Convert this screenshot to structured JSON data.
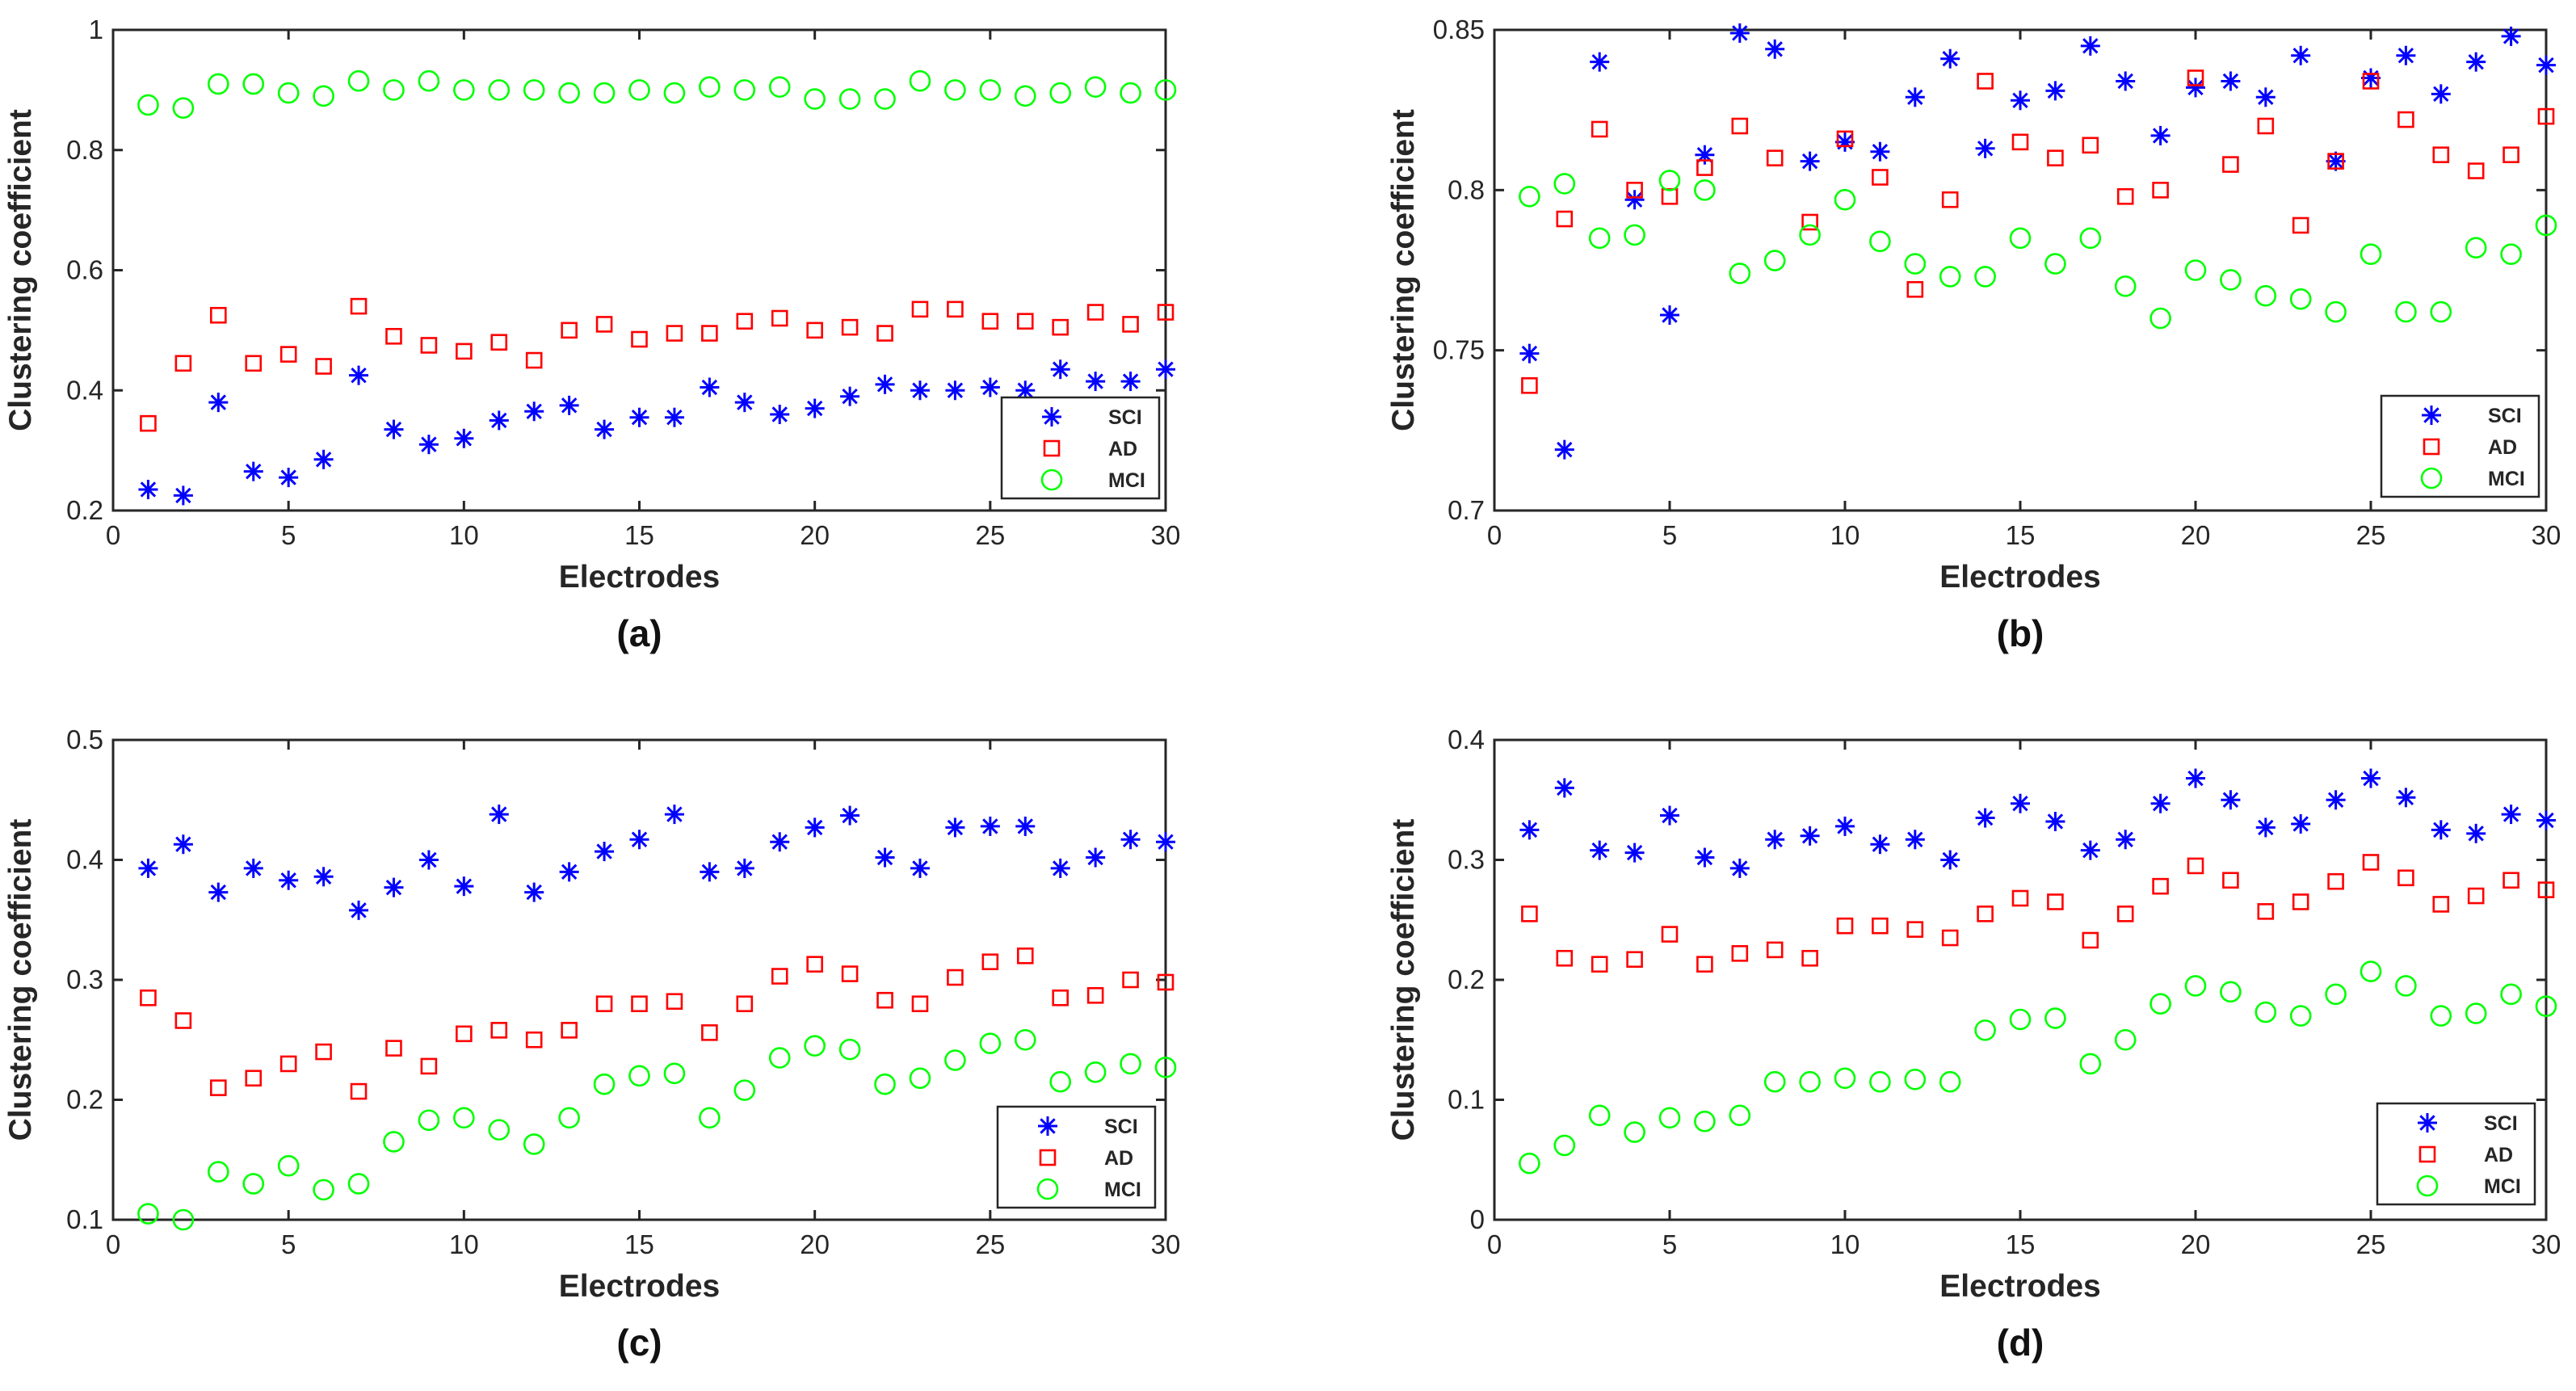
{
  "colors": {
    "SCI": "#0000ff",
    "AD": "#ff0000",
    "MCI": "#00ff00"
  },
  "chart_data": [
    {
      "type": "scatter",
      "panel_label": "(a)",
      "xlabel": "Electrodes",
      "ylabel": "Clustering coefficient",
      "xlim": [
        0,
        30
      ],
      "ylim": [
        0.2,
        1
      ],
      "xticks": [
        0,
        5,
        10,
        15,
        20,
        25,
        30
      ],
      "xtick_labels": [
        "0",
        "5",
        "10",
        "15",
        "20",
        "25",
        "30"
      ],
      "yticks": [
        0.2,
        0.4,
        0.6,
        0.8,
        1
      ],
      "ytick_labels": [
        "0.2",
        "0.4",
        "0.6",
        "0.8",
        "1"
      ],
      "legend_position": "bottom-right",
      "x": [
        1,
        2,
        3,
        4,
        5,
        6,
        7,
        8,
        9,
        10,
        11,
        12,
        13,
        14,
        15,
        16,
        17,
        18,
        19,
        20,
        21,
        22,
        23,
        24,
        25,
        26,
        27,
        28,
        29,
        30
      ],
      "series": [
        {
          "name": "SCI",
          "marker": "asterisk",
          "values": [
            0.235,
            0.225,
            0.38,
            0.265,
            0.255,
            0.285,
            0.425,
            0.335,
            0.31,
            0.32,
            0.35,
            0.365,
            0.375,
            0.335,
            0.355,
            0.355,
            0.405,
            0.38,
            0.36,
            0.37,
            0.39,
            0.41,
            0.4,
            0.4,
            0.405,
            0.4,
            0.435,
            0.415,
            0.415,
            0.435
          ]
        },
        {
          "name": "AD",
          "marker": "square",
          "values": [
            0.345,
            0.445,
            0.525,
            0.445,
            0.46,
            0.44,
            0.54,
            0.49,
            0.475,
            0.465,
            0.48,
            0.45,
            0.5,
            0.51,
            0.485,
            0.495,
            0.495,
            0.515,
            0.52,
            0.5,
            0.505,
            0.495,
            0.535,
            0.535,
            0.515,
            0.515,
            0.505,
            0.53,
            0.51,
            0.53
          ]
        },
        {
          "name": "MCI",
          "marker": "circle",
          "values": [
            0.875,
            0.87,
            0.91,
            0.91,
            0.895,
            0.89,
            0.915,
            0.9,
            0.915,
            0.9,
            0.9,
            0.9,
            0.895,
            0.895,
            0.9,
            0.895,
            0.905,
            0.9,
            0.905,
            0.885,
            0.885,
            0.885,
            0.915,
            0.9,
            0.9,
            0.89,
            0.895,
            0.905,
            0.895,
            0.9
          ]
        }
      ]
    },
    {
      "type": "scatter",
      "panel_label": "(b)",
      "xlabel": "Electrodes",
      "ylabel": "Clustering coefficient",
      "xlim": [
        0,
        30
      ],
      "ylim": [
        0.7,
        0.85
      ],
      "xticks": [
        0,
        5,
        10,
        15,
        20,
        25,
        30
      ],
      "xtick_labels": [
        "0",
        "5",
        "10",
        "15",
        "20",
        "25",
        "30"
      ],
      "yticks": [
        0.7,
        0.75,
        0.8,
        0.85
      ],
      "ytick_labels": [
        "0.7",
        "0.75",
        "0.8",
        "0.85"
      ],
      "legend_position": "bottom-right",
      "x": [
        1,
        2,
        3,
        4,
        5,
        6,
        7,
        8,
        9,
        10,
        11,
        12,
        13,
        14,
        15,
        16,
        17,
        18,
        19,
        20,
        21,
        22,
        23,
        24,
        25,
        26,
        27,
        28,
        29,
        30
      ],
      "series": [
        {
          "name": "SCI",
          "marker": "asterisk",
          "values": [
            0.749,
            0.719,
            0.84,
            0.797,
            0.761,
            0.811,
            0.849,
            0.844,
            0.809,
            0.815,
            0.812,
            0.829,
            0.841,
            0.813,
            0.828,
            0.831,
            0.845,
            0.834,
            0.817,
            0.832,
            0.834,
            0.829,
            0.842,
            0.809,
            0.835,
            0.842,
            0.83,
            0.84,
            0.848,
            0.839
          ]
        },
        {
          "name": "AD",
          "marker": "square",
          "values": [
            0.739,
            0.791,
            0.819,
            0.8,
            0.798,
            0.807,
            0.82,
            0.81,
            0.79,
            0.816,
            0.804,
            0.769,
            0.797,
            0.834,
            0.815,
            0.81,
            0.814,
            0.798,
            0.8,
            0.835,
            0.808,
            0.82,
            0.789,
            0.809,
            0.834,
            0.822,
            0.811,
            0.806,
            0.811,
            0.823
          ]
        },
        {
          "name": "MCI",
          "marker": "circle",
          "values": [
            0.798,
            0.802,
            0.785,
            0.786,
            0.803,
            0.8,
            0.774,
            0.778,
            0.786,
            0.797,
            0.784,
            0.777,
            0.773,
            0.773,
            0.785,
            0.777,
            0.785,
            0.77,
            0.76,
            0.775,
            0.772,
            0.767,
            0.766,
            0.762,
            0.78,
            0.762,
            0.762,
            0.782,
            0.78,
            0.789
          ]
        }
      ]
    },
    {
      "type": "scatter",
      "panel_label": "(c)",
      "xlabel": "Electrodes",
      "ylabel": "Clustering coefficient",
      "xlim": [
        0,
        30
      ],
      "ylim": [
        0.1,
        0.5
      ],
      "xticks": [
        0,
        5,
        10,
        15,
        20,
        25,
        30
      ],
      "xtick_labels": [
        "0",
        "5",
        "10",
        "15",
        "20",
        "25",
        "30"
      ],
      "yticks": [
        0.1,
        0.2,
        0.3,
        0.4,
        0.5
      ],
      "ytick_labels": [
        "0.1",
        "0.2",
        "0.3",
        "0.4",
        "0.5"
      ],
      "legend_position": "bottom-right",
      "x": [
        1,
        2,
        3,
        4,
        5,
        6,
        7,
        8,
        9,
        10,
        11,
        12,
        13,
        14,
        15,
        16,
        17,
        18,
        19,
        20,
        21,
        22,
        23,
        24,
        25,
        26,
        27,
        28,
        29,
        30
      ],
      "series": [
        {
          "name": "SCI",
          "marker": "asterisk",
          "values": [
            0.393,
            0.413,
            0.373,
            0.393,
            0.383,
            0.386,
            0.358,
            0.377,
            0.4,
            0.378,
            0.438,
            0.373,
            0.39,
            0.407,
            0.417,
            0.438,
            0.39,
            0.393,
            0.415,
            0.427,
            0.437,
            0.402,
            0.393,
            0.427,
            0.428,
            0.428,
            0.393,
            0.402,
            0.417,
            0.415
          ]
        },
        {
          "name": "AD",
          "marker": "square",
          "values": [
            0.285,
            0.266,
            0.21,
            0.218,
            0.23,
            0.24,
            0.207,
            0.243,
            0.228,
            0.255,
            0.258,
            0.25,
            0.258,
            0.28,
            0.28,
            0.282,
            0.256,
            0.28,
            0.303,
            0.313,
            0.305,
            0.283,
            0.28,
            0.302,
            0.315,
            0.32,
            0.285,
            0.287,
            0.3,
            0.298
          ]
        },
        {
          "name": "MCI",
          "marker": "circle",
          "values": [
            0.105,
            0.1,
            0.14,
            0.13,
            0.145,
            0.125,
            0.13,
            0.165,
            0.183,
            0.185,
            0.175,
            0.163,
            0.185,
            0.213,
            0.22,
            0.222,
            0.185,
            0.208,
            0.235,
            0.245,
            0.242,
            0.213,
            0.218,
            0.233,
            0.247,
            0.25,
            0.215,
            0.223,
            0.23,
            0.227
          ]
        }
      ]
    },
    {
      "type": "scatter",
      "panel_label": "(d)",
      "xlabel": "Electrodes",
      "ylabel": "Clustering coefficient",
      "xlim": [
        0,
        30
      ],
      "ylim": [
        0,
        0.4
      ],
      "xticks": [
        0,
        5,
        10,
        15,
        20,
        25,
        30
      ],
      "xtick_labels": [
        "0",
        "5",
        "10",
        "15",
        "20",
        "25",
        "30"
      ],
      "yticks": [
        0,
        0.1,
        0.2,
        0.3,
        0.4
      ],
      "ytick_labels": [
        "0",
        "0.1",
        "0.2",
        "0.3",
        "0.4"
      ],
      "legend_position": "bottom-right",
      "x": [
        1,
        2,
        3,
        4,
        5,
        6,
        7,
        8,
        9,
        10,
        11,
        12,
        13,
        14,
        15,
        16,
        17,
        18,
        19,
        20,
        21,
        22,
        23,
        24,
        25,
        26,
        27,
        28,
        29,
        30
      ],
      "series": [
        {
          "name": "SCI",
          "marker": "asterisk",
          "values": [
            0.325,
            0.36,
            0.308,
            0.306,
            0.337,
            0.302,
            0.293,
            0.317,
            0.32,
            0.328,
            0.313,
            0.317,
            0.3,
            0.335,
            0.347,
            0.332,
            0.308,
            0.317,
            0.347,
            0.368,
            0.35,
            0.327,
            0.33,
            0.35,
            0.368,
            0.352,
            0.325,
            0.322,
            0.338,
            0.333
          ]
        },
        {
          "name": "AD",
          "marker": "square",
          "values": [
            0.255,
            0.218,
            0.213,
            0.217,
            0.238,
            0.213,
            0.222,
            0.225,
            0.218,
            0.245,
            0.245,
            0.242,
            0.235,
            0.255,
            0.268,
            0.265,
            0.233,
            0.255,
            0.278,
            0.295,
            0.283,
            0.257,
            0.265,
            0.282,
            0.298,
            0.285,
            0.263,
            0.27,
            0.283,
            0.275
          ]
        },
        {
          "name": "MCI",
          "marker": "circle",
          "values": [
            0.047,
            0.062,
            0.087,
            0.073,
            0.085,
            0.082,
            0.087,
            0.115,
            0.115,
            0.118,
            0.115,
            0.117,
            0.115,
            0.158,
            0.167,
            0.168,
            0.13,
            0.15,
            0.18,
            0.195,
            0.19,
            0.173,
            0.17,
            0.188,
            0.207,
            0.195,
            0.17,
            0.172,
            0.188,
            0.178
          ]
        }
      ]
    }
  ]
}
